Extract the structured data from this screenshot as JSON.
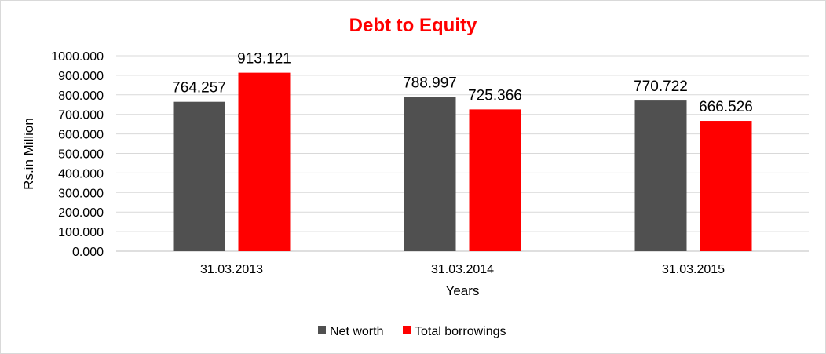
{
  "chart_data": {
    "type": "bar",
    "title": "Debt to Equity",
    "title_color": "#ff0000",
    "xlabel": "Years",
    "ylabel": "Rs.in Million",
    "categories": [
      "31.03.2013",
      "31.03.2014",
      "31.03.2015"
    ],
    "series": [
      {
        "name": "Net worth",
        "color": "#505050",
        "values": [
          764.257,
          788.997,
          770.722
        ],
        "labels": [
          "764.257",
          "788.997",
          "770.722"
        ]
      },
      {
        "name": "Total borrowings",
        "color": "#ff0000",
        "values": [
          913.121,
          725.366,
          666.526
        ],
        "labels": [
          "913.121",
          "725.366",
          "666.526"
        ]
      }
    ],
    "ylim": [
      0,
      1000
    ],
    "yticks": [
      0,
      100,
      200,
      300,
      400,
      500,
      600,
      700,
      800,
      900,
      1000
    ],
    "ytick_labels": [
      "0.000",
      "100.000",
      "200.000",
      "300.000",
      "400.000",
      "500.000",
      "600.000",
      "700.000",
      "800.000",
      "900.000",
      "1000.000"
    ],
    "grid": true,
    "legend_position": "bottom"
  }
}
